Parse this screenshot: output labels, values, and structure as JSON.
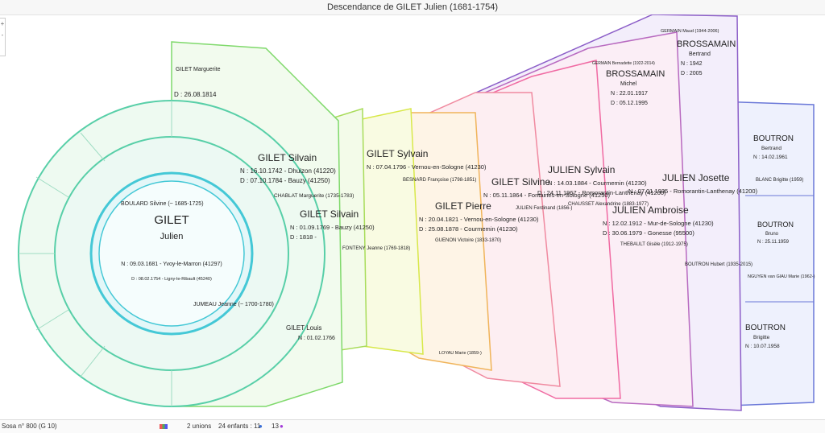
{
  "window": {
    "title": "Descendance de GILET Julien (1681-1754)"
  },
  "colors": {
    "center_ring": "#44c8d6",
    "ring1": "#58cfa8",
    "ring2": "#7fd96b",
    "gen_yellow": "#d8e84a",
    "gen_orange": "#f0b45a",
    "gen_pink": "#f06aa2",
    "gen_purple": "#8c5ec8",
    "gen_blue": "#6a78d8"
  },
  "root": {
    "surname": "GILET",
    "given": "Julien",
    "birth": "N : 09.03.1681 - Yvoy-le-Marron (41297)",
    "death": "D : 08.02.1754 - Ligny-le-Ribault (45240)",
    "spouse1": "BOULARD Silvine (~ 1685-1725)",
    "spouse2": "JUMEAU Jeanne (~ 1700-1780)"
  },
  "gen2": {
    "silvain1": {
      "name": "GILET Silvain",
      "birth": "N : 16.10.1742 - Dhuizon (41220)",
      "death": "D : 07.10.1784 - Bauzy (41250)"
    },
    "spouse": "CHABLAT Marguerite (1735-1783)",
    "marguerite": {
      "name": "GILET Marguerite",
      "death": "D : 26.08.1814"
    },
    "louis": {
      "name": "GILET Louis",
      "birth": "N : 01.02.1766"
    }
  },
  "gen3": {
    "name": "GILET Silvain",
    "birth": "N : 01.09.1769 - Bauzy (41250)",
    "death": "D : 1818 -",
    "spouse": "FONTENY Jeanne (1769-1818)"
  },
  "gen4": {
    "name": "GILET Sylvain",
    "birth": "N : 07.04.1796 - Vernou-en-Sologne (41230)",
    "spouse": "BESNARD Françoise (1798-1851)"
  },
  "gen5": {
    "name": "GILET Pierre",
    "birth": "N : 20.04.1821 - Vernou-en-Sologne (41230)",
    "death": "D : 25.08.1878 - Courmemin (41230)",
    "spouse": "GUENON Victoire (1833-1870)",
    "spouse_small": "LOYAU Marie (1859-)"
  },
  "gen6": {
    "name": "GILET Silvine",
    "birth": "N : 05.11.1864 - Fontaines-en-Sologne (41250)",
    "spouse": "JULIEN Ferdinand (1856-)"
  },
  "gen7": {
    "name": "JULIEN Sylvain",
    "birth": "N : 14.03.1884 - Courmemin (41230)",
    "death": "D : 24.11.1967 - Romorantin-Lanthenay (41200)",
    "spouse": "CHAUSSET Alexandrine (1883-1977)"
  },
  "gen8": {
    "name": "JULIEN Ambroise",
    "birth": "N : 12.02.1912 - Mur-de-Sologne (41230)",
    "death": "D : 30.06.1979 - Gonesse (95500)",
    "spouse": "THEBAULT Gisèle (1912-1975)",
    "side_spouse": "GERMAIN Bernadette (1922-2014)",
    "side_child": {
      "name": "BROSSAMAIN",
      "given": "Michel",
      "birth": "N : 22.01.1917",
      "death": "D : 05.12.1995"
    }
  },
  "gen9": {
    "name": "JULIEN Josette",
    "birth": "N : 07.01.1935 - Romorantin-Lanthenay (41200)",
    "spouse": "BOUTRON Hubert (1935-2015)",
    "side_spouse": "GERMAIN Maud (1944-2006)",
    "side_child": {
      "name": "BROSSAMAIN",
      "given": "Bertrand",
      "birth": "N : 1942",
      "death": "D : 2005"
    }
  },
  "gen10": {
    "c1": {
      "name": "BOUTRON",
      "given": "Bertrand",
      "birth": "N : 14.02.1961"
    },
    "c1_spouse": "BLANC Brigitte (1959)",
    "c2": {
      "name": "BOUTRON",
      "given": "Bruno",
      "birth": "N : 25.11.1959"
    },
    "c2_spouse": "NGUYEN van GIAU Marie (1962-)",
    "c3": {
      "name": "BOUTRON",
      "given": "Brigitte",
      "birth": "N : 10.07.1958"
    }
  },
  "status": {
    "sosa": "Sosa n° 800 (G 10)",
    "unions": "2 unions",
    "children": "24 enfants : 11",
    "children_f": "13"
  },
  "icons": [
    "palette-icon",
    "male-icon",
    "female-icon",
    "zoom-in-icon",
    "zoom-out-icon"
  ]
}
